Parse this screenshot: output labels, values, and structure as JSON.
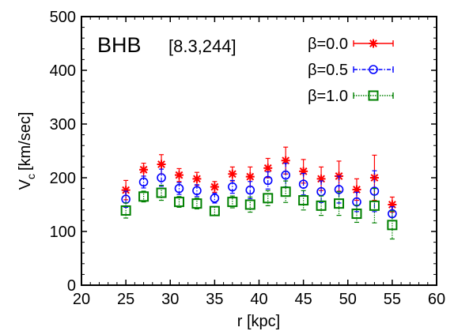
{
  "chart_data": {
    "type": "scatter",
    "title": "BHB",
    "subtitle": "[8.3,244]",
    "xlabel": "r [kpc]",
    "ylabel_main": "V",
    "ylabel_sub": "c",
    "ylabel_units": "[km/sec]",
    "xlim": [
      20,
      60
    ],
    "ylim": [
      0,
      500
    ],
    "x_ticks": [
      20,
      25,
      30,
      35,
      40,
      45,
      50,
      55,
      60
    ],
    "y_ticks": [
      0,
      100,
      200,
      300,
      400,
      500
    ],
    "x_tick_labels": [
      "20",
      "25",
      "30",
      "35",
      "40",
      "45",
      "50",
      "55",
      "60"
    ],
    "y_tick_labels": [
      "0",
      "100",
      "200",
      "300",
      "400",
      "500"
    ],
    "legend_position": "top-right",
    "grid": false,
    "series": [
      {
        "name": "β=0.0",
        "color": "#ff0000",
        "marker": "asterisk",
        "line_style": "solid",
        "x": [
          25,
          27,
          29,
          31,
          33,
          35,
          37,
          39,
          41,
          43,
          45,
          47,
          49,
          51,
          53,
          55
        ],
        "y": [
          177,
          215,
          225,
          205,
          198,
          183,
          207,
          202,
          218,
          232,
          212,
          198,
          203,
          178,
          200,
          150
        ],
        "err": [
          18,
          12,
          18,
          12,
          12,
          10,
          13,
          18,
          18,
          25,
          22,
          22,
          28,
          20,
          42,
          14
        ]
      },
      {
        "name": "β=0.5",
        "color": "#0000ff",
        "marker": "circle",
        "line_style": "dashdot",
        "x": [
          25,
          27,
          29,
          31,
          33,
          35,
          37,
          39,
          41,
          43,
          45,
          47,
          49,
          51,
          53,
          55
        ],
        "y": [
          160,
          192,
          200,
          180,
          176,
          162,
          183,
          177,
          195,
          205,
          188,
          174,
          178,
          155,
          175,
          133
        ],
        "err": [
          15,
          11,
          16,
          11,
          11,
          9,
          12,
          16,
          16,
          22,
          20,
          20,
          25,
          18,
          38,
          13
        ]
      },
      {
        "name": "β=1.0",
        "color": "#008000",
        "marker": "square",
        "line_style": "dotted",
        "x": [
          25,
          27,
          29,
          31,
          33,
          35,
          37,
          39,
          41,
          43,
          45,
          47,
          49,
          51,
          53,
          55
        ],
        "y": [
          139,
          165,
          172,
          155,
          152,
          138,
          155,
          150,
          162,
          174,
          158,
          148,
          152,
          133,
          148,
          112
        ],
        "err": [
          14,
          10,
          14,
          10,
          10,
          8,
          11,
          14,
          14,
          20,
          18,
          18,
          22,
          16,
          32,
          26
        ]
      }
    ]
  }
}
